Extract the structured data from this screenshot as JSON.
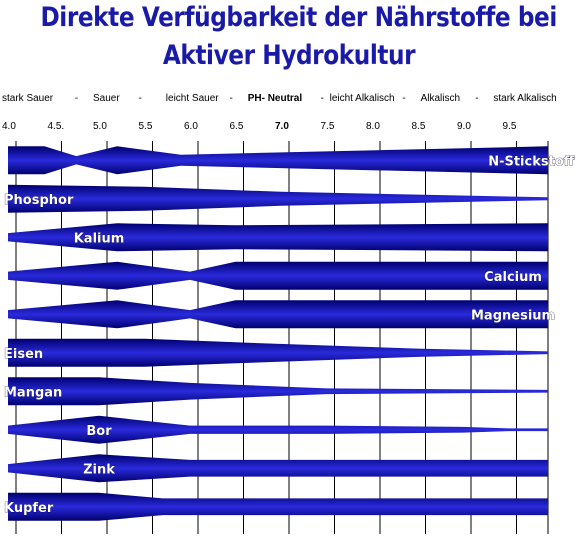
{
  "title_line1": "Direkte Verfügbarkeit der Nährstoffe bei",
  "title_line2": "Aktiver Hydrokultur",
  "scale_labels": [
    {
      "text": "stark Sauer",
      "x": 4.0,
      "bold": false
    },
    {
      "text": "-",
      "x": 4.8,
      "bold": false
    },
    {
      "text": "Sauer",
      "x": 5.0,
      "bold": false
    },
    {
      "text": "-",
      "x": 5.5,
      "bold": false
    },
    {
      "text": "leicht Sauer",
      "x": 5.8,
      "bold": false
    },
    {
      "text": "-",
      "x": 6.5,
      "bold": false
    },
    {
      "text": "PH- Neutral",
      "x": 6.7,
      "bold": true
    },
    {
      "text": "-",
      "x": 7.5,
      "bold": false
    },
    {
      "text": "leicht Alkalisch",
      "x": 7.6,
      "bold": false
    },
    {
      "text": "-",
      "x": 8.4,
      "bold": false
    },
    {
      "text": "Alkalisch",
      "x": 8.6,
      "bold": false
    },
    {
      "text": "-",
      "x": 9.2,
      "bold": false
    },
    {
      "text": "stark Alkalisch",
      "x": 9.4,
      "bold": false
    }
  ],
  "colors": {
    "title": "#1a1aa8",
    "band_dark": "#00006e",
    "band_light": "#2a2adc",
    "grid": "#000000",
    "label": "#ffffff"
  },
  "chart_data": {
    "type": "area",
    "title": "Direkte Verfügbarkeit der Nährstoffe bei Aktiver Hydrokultur",
    "xlabel": "",
    "ylabel": "",
    "xlim": [
      4.0,
      10.0
    ],
    "x_ticks": [
      {
        "label": "4.0",
        "value": 4.0,
        "bold": false
      },
      {
        "label": "4.5.",
        "value": 4.5,
        "bold": false
      },
      {
        "label": "5.0",
        "value": 5.0,
        "bold": false
      },
      {
        "label": "5.5",
        "value": 5.5,
        "bold": false
      },
      {
        "label": "6.0",
        "value": 6.0,
        "bold": false
      },
      {
        "label": "6.5",
        "value": 6.5,
        "bold": false
      },
      {
        "label": "7.0",
        "value": 7.0,
        "bold": true
      },
      {
        "label": "7.5",
        "value": 7.5,
        "bold": false
      },
      {
        "label": "8.0",
        "value": 8.0,
        "bold": false
      },
      {
        "label": "8.5",
        "value": 8.5,
        "bold": false
      },
      {
        "label": "9.0",
        "value": 9.0,
        "bold": false
      },
      {
        "label": "9.5",
        "value": 9.5,
        "bold": false
      }
    ],
    "grid": true,
    "series": [
      {
        "name": "N-Stickstoff",
        "label_ph": 9.75,
        "label_align": "middle",
        "points": [
          [
            4.0,
            1.0
          ],
          [
            4.4,
            1.0
          ],
          [
            4.75,
            0.3
          ],
          [
            5.2,
            1.0
          ],
          [
            5.9,
            0.4
          ],
          [
            10.0,
            1.0
          ]
        ]
      },
      {
        "name": "Phosphor",
        "label_ph": 4.0,
        "label_align": "start",
        "points": [
          [
            4.0,
            1.0
          ],
          [
            5.5,
            0.85
          ],
          [
            7.0,
            0.5
          ],
          [
            8.5,
            0.3
          ],
          [
            10.0,
            0.1
          ]
        ]
      },
      {
        "name": "Kalium",
        "label_ph": 5.0,
        "label_align": "middle",
        "points": [
          [
            4.0,
            0.3
          ],
          [
            5.2,
            1.0
          ],
          [
            6.5,
            0.85
          ],
          [
            10.0,
            1.0
          ]
        ]
      },
      {
        "name": "Calcium",
        "label_ph": 9.55,
        "label_align": "middle",
        "points": [
          [
            4.0,
            0.3
          ],
          [
            5.2,
            1.0
          ],
          [
            6.0,
            0.3
          ],
          [
            6.5,
            1.0
          ],
          [
            10.0,
            1.0
          ]
        ]
      },
      {
        "name": "Magnesium",
        "label_ph": 9.55,
        "label_align": "middle",
        "points": [
          [
            4.0,
            0.3
          ],
          [
            5.2,
            1.0
          ],
          [
            6.0,
            0.3
          ],
          [
            6.5,
            1.0
          ],
          [
            10.0,
            1.0
          ]
        ]
      },
      {
        "name": "Eisen",
        "label_ph": 4.0,
        "label_align": "start",
        "points": [
          [
            4.0,
            1.0
          ],
          [
            5.5,
            1.0
          ],
          [
            6.5,
            0.75
          ],
          [
            8.5,
            0.3
          ],
          [
            10.0,
            0.1
          ]
        ]
      },
      {
        "name": "Mangan",
        "label_ph": 4.0,
        "label_align": "start",
        "points": [
          [
            4.0,
            1.0
          ],
          [
            5.0,
            1.0
          ],
          [
            6.0,
            0.6
          ],
          [
            7.5,
            0.2
          ],
          [
            10.0,
            0.1
          ]
        ]
      },
      {
        "name": "Bor",
        "label_ph": 5.0,
        "label_align": "middle",
        "points": [
          [
            4.0,
            0.3
          ],
          [
            5.0,
            1.0
          ],
          [
            6.0,
            0.3
          ],
          [
            7.5,
            0.3
          ],
          [
            9.0,
            0.2
          ],
          [
            9.5,
            0.1
          ],
          [
            10.0,
            0.1
          ]
        ]
      },
      {
        "name": "Zink",
        "label_ph": 5.0,
        "label_align": "middle",
        "points": [
          [
            4.0,
            0.3
          ],
          [
            5.0,
            1.0
          ],
          [
            6.0,
            0.6
          ],
          [
            7.0,
            0.6
          ],
          [
            10.0,
            0.6
          ]
        ]
      },
      {
        "name": "Kupfer",
        "label_ph": 4.0,
        "label_align": "start",
        "points": [
          [
            4.0,
            1.0
          ],
          [
            5.0,
            1.0
          ],
          [
            5.7,
            0.6
          ],
          [
            10.0,
            0.6
          ]
        ]
      }
    ]
  }
}
